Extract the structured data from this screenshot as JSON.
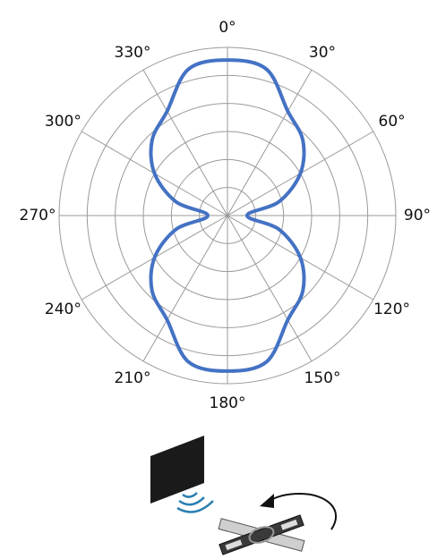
{
  "chart_data": {
    "type": "polar",
    "theta_zero": "N",
    "theta_direction": "clockwise",
    "x": [
      0,
      15,
      30,
      45,
      60,
      75,
      90,
      105,
      120,
      135,
      150,
      165,
      180,
      195,
      210,
      225,
      240,
      255,
      270,
      285,
      300,
      315,
      330,
      345
    ],
    "series": [
      {
        "color": "#4472c4",
        "values": [
          5.55,
          5.4,
          4.3,
          3.8,
          3.0,
          1.9,
          0.7,
          1.9,
          3.0,
          3.8,
          4.3,
          5.4,
          5.55,
          5.4,
          4.3,
          3.8,
          3.0,
          1.9,
          0.7,
          1.9,
          3.0,
          3.8,
          4.3,
          5.4
        ]
      }
    ],
    "rlim": [
      0,
      6
    ],
    "rticks": [
      1,
      2,
      3,
      4,
      5,
      6
    ],
    "xticks": [
      {
        "value": 0,
        "label": "0°"
      },
      {
        "value": 30,
        "label": "30°"
      },
      {
        "value": 60,
        "label": "60°"
      },
      {
        "value": 90,
        "label": "90°"
      },
      {
        "value": 120,
        "label": "120°"
      },
      {
        "value": 150,
        "label": "150°"
      },
      {
        "value": 180,
        "label": "180°"
      },
      {
        "value": 210,
        "label": "210°"
      },
      {
        "value": 240,
        "label": "240°"
      },
      {
        "value": 270,
        "label": "270°"
      },
      {
        "value": 300,
        "label": "300°"
      },
      {
        "value": 330,
        "label": "330°"
      }
    ],
    "grid": true
  }
}
